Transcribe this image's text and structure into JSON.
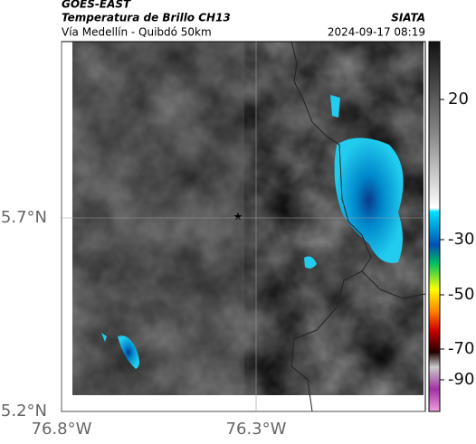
{
  "header": {
    "source": "GOES-EAST",
    "title": "Temperatura de Brillo CH13",
    "subtitle": "Vía Medellín - Quibdó 50km",
    "org": "SIATA",
    "timestamp": "2024-09-17 08:19"
  },
  "axes": {
    "lat_ticks": [
      {
        "value": 5.2,
        "label": "5.2°N"
      },
      {
        "value": 5.7,
        "label": "5.7°N"
      }
    ],
    "lon_ticks": [
      {
        "value": -76.8,
        "label": "76.8°W"
      },
      {
        "value": -76.3,
        "label": "76.3°W"
      }
    ]
  },
  "colorbar": {
    "ticks": [
      20,
      -30,
      -50,
      -70,
      -90
    ]
  }
}
